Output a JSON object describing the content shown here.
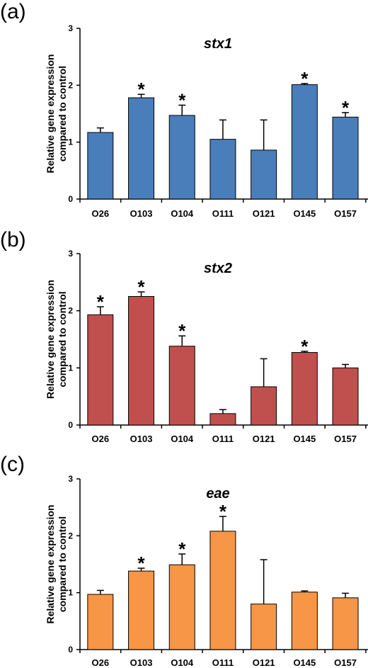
{
  "chart_data": [
    {
      "type": "bar",
      "panel_label": "(a)",
      "title": "stx1",
      "ylabel": "Relative gene expression compared to control",
      "xlabel": "",
      "ylim": [
        0,
        3
      ],
      "yticks": [
        0,
        1,
        2,
        3
      ],
      "color": "#4a7ebb",
      "categories": [
        "O26",
        "O103",
        "O104",
        "O111",
        "O121",
        "O145",
        "O157"
      ],
      "values": [
        1.17,
        1.78,
        1.47,
        1.05,
        0.86,
        2.01,
        1.44
      ],
      "errors": [
        0.08,
        0.06,
        0.18,
        0.34,
        0.53,
        0.02,
        0.08
      ],
      "significant": [
        false,
        true,
        true,
        false,
        false,
        true,
        true
      ],
      "marker": "*"
    },
    {
      "type": "bar",
      "panel_label": "(b)",
      "title": "stx2",
      "ylabel": "Relative gene expression compared to control",
      "xlabel": "",
      "ylim": [
        0,
        3
      ],
      "yticks": [
        0,
        1,
        2,
        3
      ],
      "color": "#c0504d",
      "categories": [
        "O26",
        "O103",
        "O104",
        "O111",
        "O121",
        "O145",
        "O157"
      ],
      "values": [
        1.93,
        2.25,
        1.38,
        0.2,
        0.67,
        1.27,
        1.0
      ],
      "errors": [
        0.14,
        0.08,
        0.18,
        0.07,
        0.49,
        0.02,
        0.06
      ],
      "significant": [
        true,
        true,
        true,
        false,
        false,
        true,
        false
      ],
      "marker": "*"
    },
    {
      "type": "bar",
      "panel_label": "(c)",
      "title": "eae",
      "ylabel": "Relative gene expression compared to control",
      "xlabel": "",
      "ylim": [
        0,
        3
      ],
      "yticks": [
        0,
        1,
        2,
        3
      ],
      "color": "#f79646",
      "categories": [
        "O26",
        "O103",
        "O104",
        "O111",
        "O121",
        "O145",
        "O157"
      ],
      "values": [
        0.97,
        1.38,
        1.49,
        2.08,
        0.8,
        1.01,
        0.91
      ],
      "errors": [
        0.07,
        0.05,
        0.19,
        0.26,
        0.78,
        0.02,
        0.08
      ],
      "significant": [
        false,
        true,
        true,
        true,
        false,
        false,
        false
      ],
      "marker": "*"
    }
  ]
}
